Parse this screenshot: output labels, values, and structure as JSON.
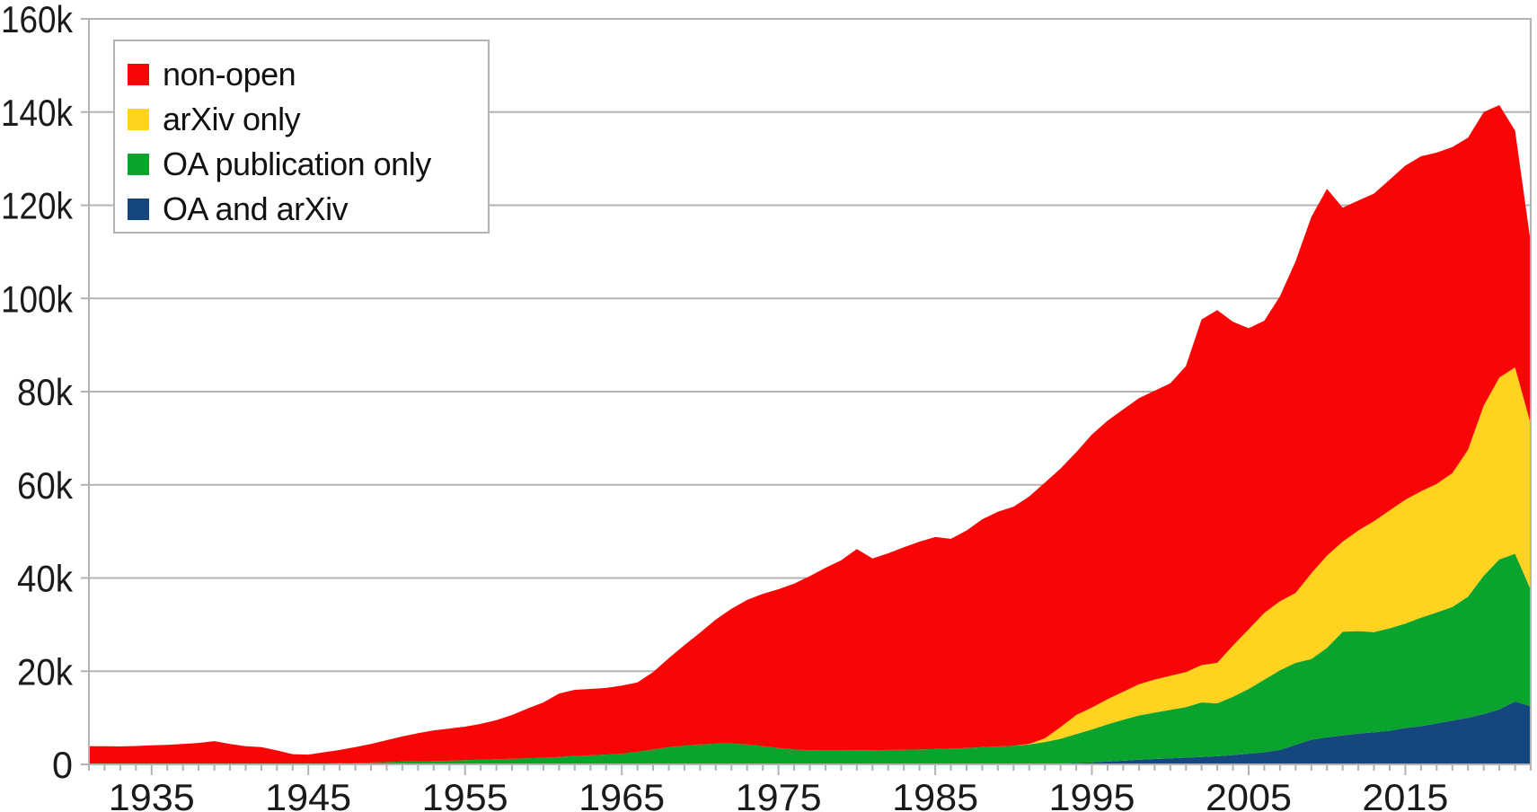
{
  "chart": {
    "background": "#ffffff",
    "grid_color": "#b3b3b3",
    "tick_color": "#b3b3b3",
    "text_color": "#1a1a1a"
  },
  "legend": {
    "position": "top-left",
    "items": [
      {
        "label": "non-open",
        "color": "#fa0505"
      },
      {
        "label": "arXiv only",
        "color": "#ffd320"
      },
      {
        "label": "OA publication only",
        "color": "#0aa32e"
      },
      {
        "label": "OA and arXiv",
        "color": "#16467e"
      }
    ]
  },
  "y_axis": {
    "tick_labels": [
      "0",
      "20k",
      "40k",
      "60k",
      "80k",
      "100k",
      "120k",
      "140k",
      "160k"
    ]
  },
  "x_axis": {
    "tick_labels": [
      "1935",
      "1945",
      "1955",
      "1965",
      "1975",
      "1985",
      "1995",
      "2005",
      "2015"
    ]
  },
  "chart_data": {
    "type": "area",
    "stacked": true,
    "grid": true,
    "legend_position": "top-left",
    "xlim": [
      1931,
      2023
    ],
    "ylim": [
      0,
      160
    ],
    "value_unit_multiplier": 1000,
    "x": [
      1931,
      1932,
      1933,
      1934,
      1935,
      1936,
      1937,
      1938,
      1939,
      1940,
      1941,
      1942,
      1943,
      1944,
      1945,
      1946,
      1947,
      1948,
      1949,
      1950,
      1951,
      1952,
      1953,
      1954,
      1955,
      1956,
      1957,
      1958,
      1959,
      1960,
      1961,
      1962,
      1963,
      1964,
      1965,
      1966,
      1967,
      1968,
      1969,
      1970,
      1971,
      1972,
      1973,
      1974,
      1975,
      1976,
      1977,
      1978,
      1979,
      1980,
      1981,
      1982,
      1983,
      1984,
      1985,
      1986,
      1987,
      1988,
      1989,
      1990,
      1991,
      1992,
      1993,
      1994,
      1995,
      1996,
      1997,
      1998,
      1999,
      2000,
      2001,
      2002,
      2003,
      2004,
      2005,
      2006,
      2007,
      2008,
      2009,
      2010,
      2011,
      2012,
      2013,
      2014,
      2015,
      2016,
      2017,
      2018,
      2019,
      2020,
      2021,
      2022,
      2023
    ],
    "series": [
      {
        "name": "OA and arXiv",
        "color": "#16467e",
        "values": [
          0,
          0,
          0,
          0,
          0,
          0,
          0,
          0,
          0,
          0,
          0,
          0,
          0,
          0,
          0,
          0,
          0,
          0,
          0,
          0,
          0,
          0,
          0,
          0,
          0,
          0,
          0,
          0,
          0,
          0,
          0,
          0,
          0,
          0,
          0,
          0,
          0,
          0,
          0,
          0,
          0,
          0,
          0,
          0,
          0,
          0,
          0,
          0,
          0,
          0,
          0,
          0,
          0,
          0,
          0,
          0,
          0,
          0,
          0,
          0,
          0,
          0.1,
          0.2,
          0.3,
          0.45,
          0.6,
          0.8,
          1.0,
          1.15,
          1.3,
          1.45,
          1.6,
          1.75,
          2.0,
          2.3,
          2.6,
          3.1,
          4.2,
          5.3,
          5.8,
          6.2,
          6.6,
          6.9,
          7.2,
          7.8,
          8.2,
          8.8,
          9.4,
          10.0,
          10.8,
          11.8,
          13.5,
          12.5
        ]
      },
      {
        "name": "OA publication only",
        "color": "#0aa32e",
        "values": [
          0.15,
          0.15,
          0.15,
          0.2,
          0.2,
          0.2,
          0.2,
          0.2,
          0.2,
          0.2,
          0.2,
          0.15,
          0.15,
          0.15,
          0.15,
          0.2,
          0.25,
          0.3,
          0.4,
          0.5,
          0.6,
          0.65,
          0.7,
          0.8,
          0.9,
          1.0,
          1.1,
          1.2,
          1.3,
          1.45,
          1.6,
          1.8,
          1.95,
          2.1,
          2.3,
          2.7,
          3.2,
          3.7,
          4.0,
          4.3,
          4.45,
          4.5,
          4.3,
          3.9,
          3.5,
          3.2,
          3.05,
          3.0,
          3.0,
          3.05,
          3.05,
          3.1,
          3.15,
          3.2,
          3.3,
          3.4,
          3.5,
          3.7,
          3.85,
          4.0,
          4.3,
          4.7,
          5.3,
          6.2,
          7.05,
          8.0,
          8.8,
          9.5,
          9.95,
          10.4,
          10.85,
          11.7,
          11.35,
          12.5,
          13.9,
          15.6,
          17.1,
          17.6,
          17.3,
          19.2,
          22.3,
          22.0,
          21.5,
          22.0,
          22.4,
          23.3,
          23.8,
          24.4,
          26.0,
          29.7,
          32.2,
          31.7,
          25.0
        ]
      },
      {
        "name": "arXiv only",
        "color": "#ffd320",
        "values": [
          0,
          0,
          0,
          0,
          0,
          0,
          0,
          0,
          0,
          0,
          0,
          0,
          0,
          0,
          0,
          0,
          0,
          0,
          0,
          0,
          0,
          0,
          0,
          0,
          0,
          0,
          0,
          0,
          0,
          0,
          0,
          0,
          0,
          0,
          0,
          0,
          0,
          0,
          0,
          0,
          0,
          0,
          0,
          0,
          0,
          0,
          0,
          0,
          0,
          0,
          0,
          0,
          0,
          0,
          0,
          0,
          0,
          0,
          0,
          0,
          0.1,
          0.8,
          2.5,
          4.1,
          4.7,
          5.4,
          6.0,
          6.7,
          7.1,
          7.3,
          7.5,
          8.0,
          8.7,
          11.0,
          12.8,
          14.3,
          14.8,
          15.0,
          18.4,
          19.8,
          19.3,
          21.6,
          23.8,
          25.3,
          26.6,
          27.1,
          27.6,
          28.7,
          31.5,
          36.5,
          39.0,
          40.0,
          35.5
        ]
      },
      {
        "name": "non-open",
        "color": "#fa0505",
        "values": [
          3.75,
          3.75,
          3.7,
          3.75,
          3.9,
          4.0,
          4.2,
          4.4,
          4.8,
          4.2,
          3.7,
          3.55,
          2.85,
          2.05,
          1.95,
          2.4,
          2.85,
          3.4,
          4.0,
          4.7,
          5.4,
          6.05,
          6.6,
          6.9,
          7.2,
          7.7,
          8.4,
          9.4,
          10.7,
          11.85,
          13.6,
          14.2,
          14.25,
          14.3,
          14.6,
          14.9,
          16.6,
          19.1,
          21.6,
          24.0,
          26.65,
          28.9,
          31.0,
          32.7,
          34.1,
          35.6,
          37.35,
          39.2,
          40.8,
          43.15,
          41.15,
          42.2,
          43.45,
          44.6,
          45.5,
          45.0,
          46.7,
          48.9,
          50.35,
          51.3,
          53.1,
          54.9,
          55.5,
          56.4,
          58.6,
          59.8,
          60.6,
          61.4,
          62.0,
          62.8,
          65.7,
          74.2,
          75.7,
          69.5,
          64.6,
          62.7,
          65.5,
          71.2,
          76.5,
          78.7,
          71.7,
          70.8,
          70.3,
          71.0,
          71.7,
          71.9,
          71.1,
          70.0,
          67.0,
          63.0,
          58.5,
          50.8,
          39.0
        ]
      }
    ]
  }
}
